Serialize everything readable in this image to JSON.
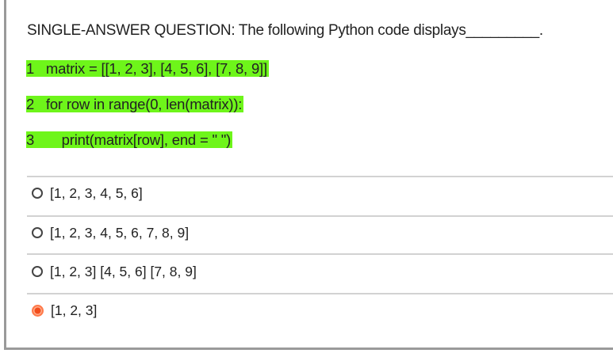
{
  "question": {
    "title": "SINGLE-ANSWER QUESTION: The following Python code displays_________.",
    "code_lines": [
      "1   matrix = [[1, 2, 3], [4, 5, 6], [7, 8, 9]]",
      "2   for row in range(0, len(matrix)):",
      "3       print(matrix[row], end = \" \")"
    ],
    "highlight_color": "#6ef51a"
  },
  "options": [
    {
      "label": "[1, 2, 3, 4, 5, 6]",
      "selected": false
    },
    {
      "label": "[1, 2, 3, 4, 5, 6, 7, 8, 9]",
      "selected": false
    },
    {
      "label": "[1, 2, 3] [4, 5, 6] [7, 8, 9]",
      "selected": false
    },
    {
      "label": "[1, 2, 3]",
      "selected": true
    }
  ],
  "selected_color": "#f24d1c"
}
